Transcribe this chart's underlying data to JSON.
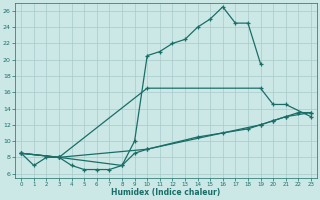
{
  "xlabel": "Humidex (Indice chaleur)",
  "background_color": "#cce8e6",
  "grid_color": "#a8cac8",
  "line_color": "#1a6e68",
  "xlim": [
    -0.5,
    23.5
  ],
  "ylim": [
    5.5,
    27.0
  ],
  "xticks": [
    0,
    1,
    2,
    3,
    4,
    5,
    6,
    7,
    8,
    9,
    10,
    11,
    12,
    13,
    14,
    15,
    16,
    17,
    18,
    19,
    20,
    21,
    22,
    23
  ],
  "yticks": [
    6,
    8,
    10,
    12,
    14,
    16,
    18,
    20,
    22,
    24,
    26
  ],
  "curve1_x": [
    0,
    1,
    2,
    3,
    4,
    5,
    6,
    7,
    8,
    9,
    10,
    11,
    12,
    13,
    14,
    15,
    16,
    17,
    18,
    19
  ],
  "curve1_y": [
    8.5,
    7.0,
    8.0,
    8.0,
    7.0,
    6.5,
    6.5,
    6.5,
    7.0,
    10.0,
    20.5,
    21.0,
    22.0,
    22.5,
    24.0,
    25.0,
    26.5,
    24.5,
    24.5,
    19.5
  ],
  "curve2_x": [
    0,
    3,
    10,
    19,
    20,
    21,
    23
  ],
  "curve2_y": [
    8.5,
    8.0,
    16.5,
    16.5,
    14.5,
    14.5,
    13.0
  ],
  "curve3_x": [
    0,
    3,
    8,
    9,
    10,
    19,
    20,
    21,
    23
  ],
  "curve3_y": [
    8.5,
    8.0,
    7.0,
    8.5,
    9.0,
    12.0,
    12.5,
    13.0,
    13.5
  ],
  "curve4_x": [
    0,
    3,
    10,
    14,
    16,
    18,
    19,
    20,
    21,
    22,
    23
  ],
  "curve4_y": [
    8.5,
    8.0,
    9.0,
    10.5,
    11.0,
    11.5,
    12.0,
    12.5,
    13.0,
    13.5,
    13.5
  ]
}
